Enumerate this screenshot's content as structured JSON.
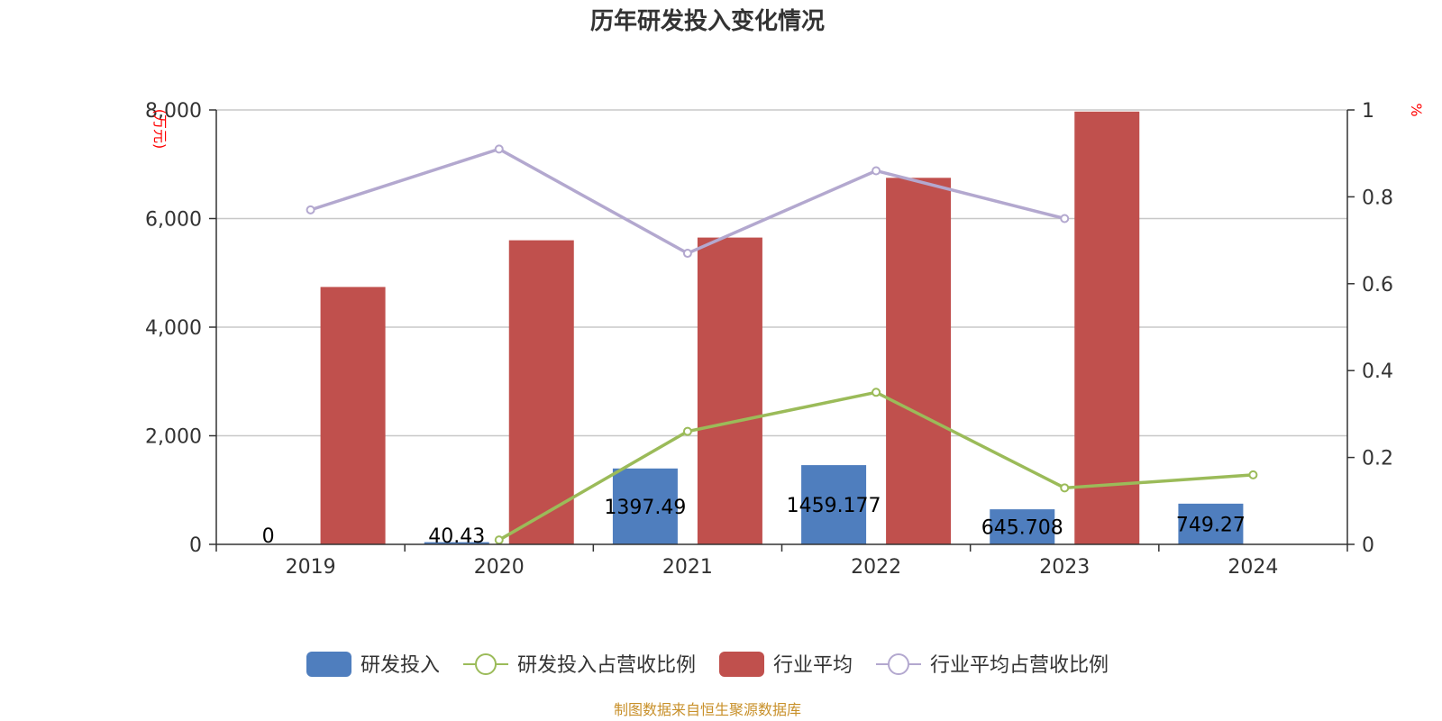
{
  "chart_data": {
    "type": "bar",
    "title": "历年研发投入变化情况",
    "categories": [
      "2019",
      "2020",
      "2021",
      "2022",
      "2023",
      "2024"
    ],
    "series": [
      {
        "name": "研发投入",
        "kind": "bar",
        "axis": "left",
        "color": "#4f7ebe",
        "values": [
          0,
          40.43,
          1397.49,
          1459.177,
          645.708,
          749.27
        ],
        "labels": [
          "0",
          "40.43",
          "1397.49",
          "1459.177",
          "645.708",
          "749.27"
        ]
      },
      {
        "name": "研发投入占营收比例",
        "kind": "line",
        "axis": "right",
        "color": "#9bbb59",
        "values": [
          null,
          0.01,
          0.26,
          0.35,
          0.13,
          0.16
        ]
      },
      {
        "name": "行业平均",
        "kind": "bar",
        "axis": "left",
        "color": "#c0504d",
        "values": [
          4740,
          5600,
          5650,
          6750,
          7970,
          null
        ]
      },
      {
        "name": "行业平均占营收比例",
        "kind": "line",
        "axis": "right",
        "color": "#b3a8cf",
        "values": [
          0.77,
          0.91,
          0.67,
          0.86,
          0.75,
          null
        ]
      }
    ],
    "y_left": {
      "unit": "(万元)",
      "min": 0,
      "max": 8000,
      "ticks": [
        0,
        2000,
        4000,
        6000,
        8000
      ],
      "tick_labels": [
        "0",
        "2,000",
        "4,000",
        "6,000",
        "8,000"
      ]
    },
    "y_right": {
      "unit": "%",
      "min": 0,
      "max": 1,
      "ticks": [
        0,
        0.2,
        0.4,
        0.6,
        0.8,
        1
      ],
      "tick_labels": [
        "0",
        "0.2",
        "0.4",
        "0.6",
        "0.8",
        "1"
      ]
    },
    "grid": true,
    "legend_position": "bottom"
  },
  "source_note": "制图数据来自恒生聚源数据库"
}
